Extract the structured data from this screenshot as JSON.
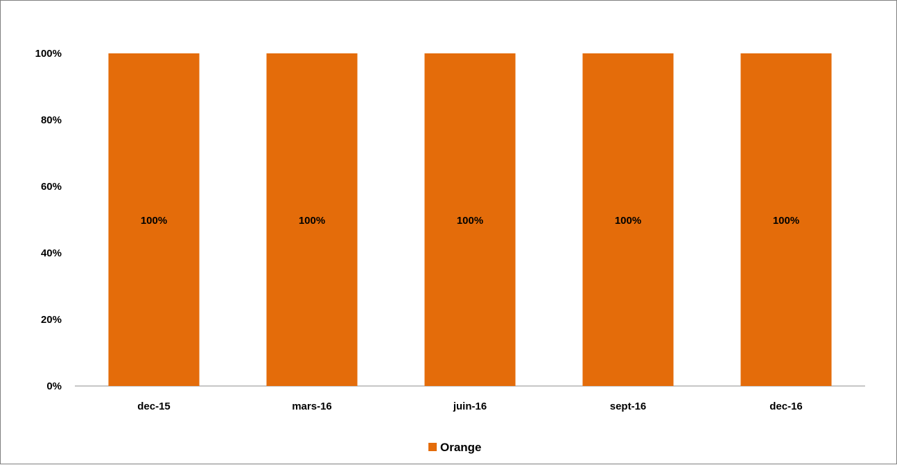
{
  "chart_data": {
    "type": "bar",
    "stacked": "100%",
    "categories": [
      "dec-15",
      "mars-16",
      "juin-16",
      "sept-16",
      "dec-16"
    ],
    "series": [
      {
        "name": "Orange",
        "values": [
          100,
          100,
          100,
          100,
          100
        ],
        "data_labels": [
          "100%",
          "100%",
          "100%",
          "100%",
          "100%"
        ],
        "color": "#E46C0A"
      }
    ],
    "y_ticks": [
      "0%",
      "20%",
      "40%",
      "60%",
      "80%",
      "100%"
    ],
    "ylim": [
      0,
      100
    ],
    "grid": false,
    "legend": {
      "position": "bottom",
      "entries": [
        "Orange"
      ]
    }
  }
}
